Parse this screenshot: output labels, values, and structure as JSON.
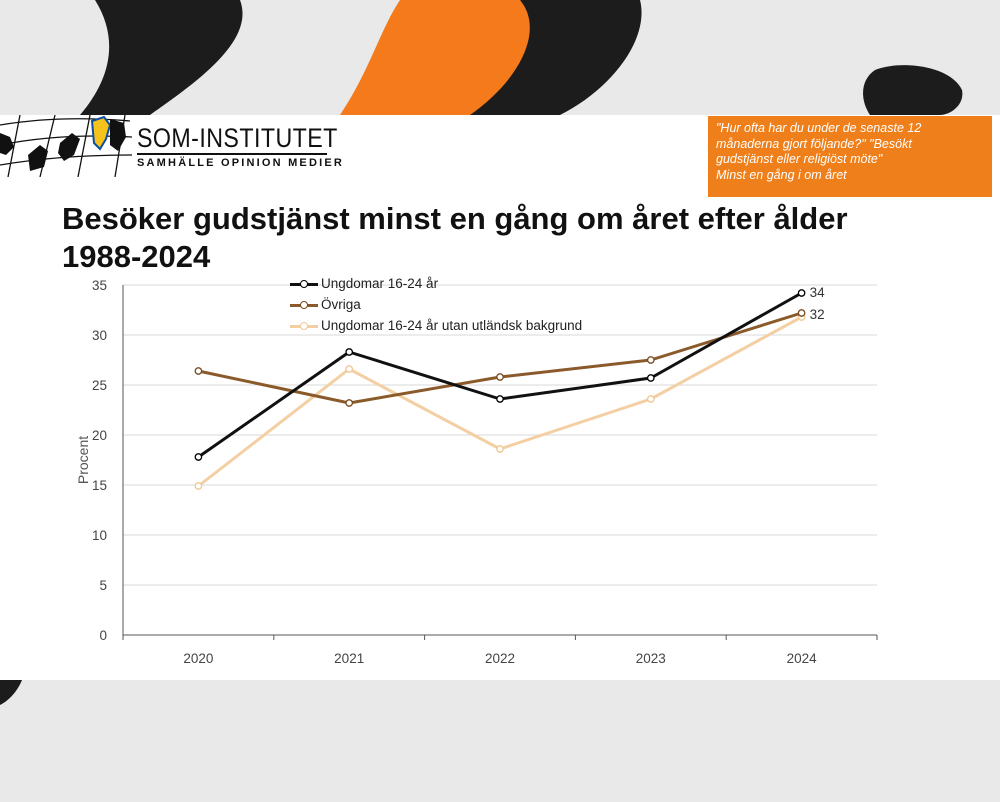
{
  "header": {
    "logo_name": "SOM-INSTITUTET",
    "logo_tagline": "SAMHÄLLE OPINION MEDIER",
    "question_lines": [
      "\"Hur ofta har du under de senaste 12",
      "månaderna gjort följande?\"  \"Besökt",
      "gudstjänst eller religiöst möte\"",
      "Minst en gång i om året"
    ]
  },
  "colors": {
    "orange": "#ef7f1a",
    "black_series": "#111111",
    "brown_series": "#8b5a2b",
    "light_series": "#f3cfa3"
  },
  "chart_data": {
    "type": "line",
    "title_lines": [
      "Besöker gudstjänst minst en gång om året efter ålder",
      "1988-2024"
    ],
    "xlabel": "",
    "ylabel": "Procent",
    "x": [
      "2020",
      "2021",
      "2022",
      "2023",
      "2024"
    ],
    "ylim": [
      0,
      35
    ],
    "yticks": [
      "0",
      "5",
      "10",
      "15",
      "20",
      "25",
      "30",
      "35"
    ],
    "grid": true,
    "legend_position": "top-left",
    "series": [
      {
        "name": "Ungdomar 16-24 år",
        "color": "#111111",
        "values": [
          17.8,
          28.3,
          23.6,
          25.7,
          34.2
        ]
      },
      {
        "name": "Övriga",
        "color": "#8b5a2b",
        "values": [
          26.4,
          23.2,
          25.8,
          27.5,
          32.2
        ]
      },
      {
        "name": "Ungdomar 16-24 år utan utländsk bakgrund",
        "color": "#f3cfa3",
        "values": [
          14.9,
          26.6,
          18.6,
          23.6,
          31.8
        ]
      }
    ],
    "end_labels": [
      "34",
      "32"
    ]
  }
}
